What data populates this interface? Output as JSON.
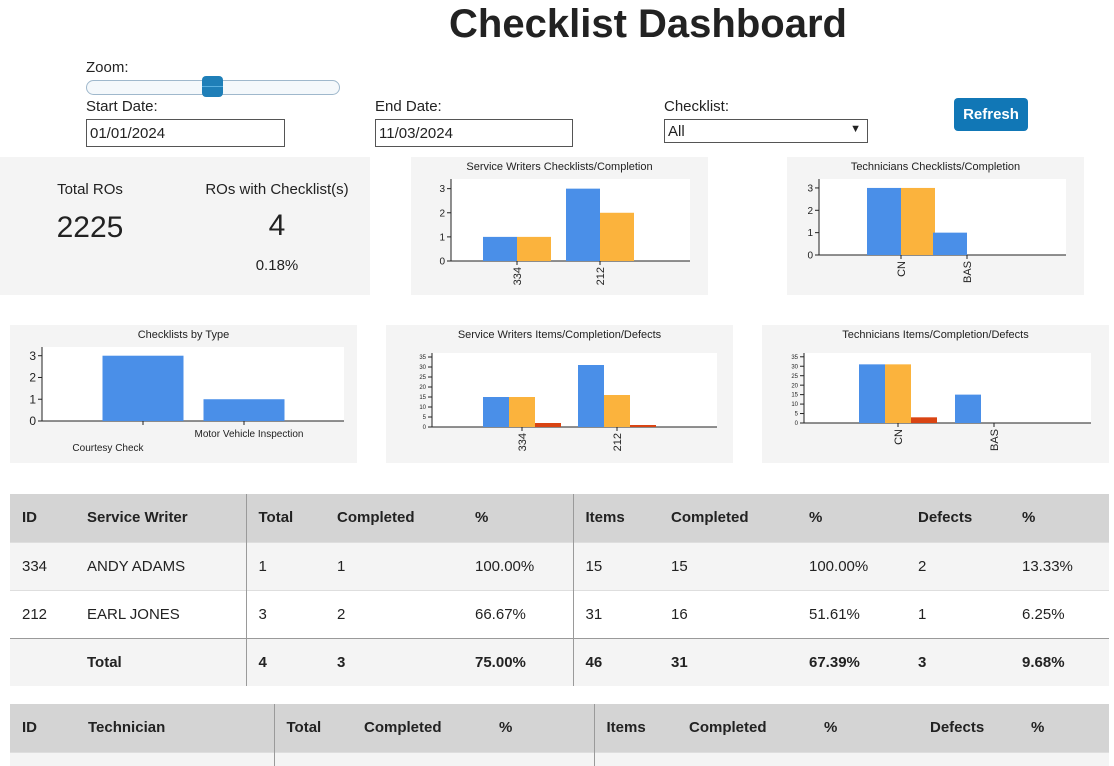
{
  "title": "Checklist Dashboard",
  "controls": {
    "zoom_label": "Zoom:",
    "zoom_level": 0.5,
    "start_label": "Start Date:",
    "start_value": "01/01/2024",
    "end_label": "End Date:",
    "end_value": "11/03/2024",
    "checklist_label": "Checklist:",
    "checklist_value": "All",
    "refresh_label": "Refresh",
    "dropdown_icon": "chevron-down-icon"
  },
  "stats": {
    "total_ros_label": "Total ROs",
    "total_ros_value": "2225",
    "ros_checklist_label": "ROs with Checklist(s)",
    "ros_checklist_value": "4",
    "ros_checklist_pct": "0.18%"
  },
  "colors": {
    "blue": "#4a8fe8",
    "orange": "#fbb33d",
    "red": "#d94413",
    "panel": "#f4f4f4"
  },
  "chart_data": [
    {
      "id": "sw-checklists",
      "type": "bar",
      "title": "Service Writers Checklists/Completion",
      "categories": [
        "334",
        "212"
      ],
      "series": [
        {
          "values": [
            1,
            3
          ]
        },
        {
          "values": [
            1,
            2
          ]
        }
      ],
      "ylim": [
        0,
        3.4
      ],
      "yticks": [
        0,
        1,
        2,
        3
      ]
    },
    {
      "id": "tech-checklists",
      "type": "bar",
      "title": "Technicians Checklists/Completion",
      "categories": [
        "CN",
        "BAS"
      ],
      "series": [
        {
          "values": [
            3,
            1
          ]
        },
        {
          "values": [
            3,
            0
          ]
        }
      ],
      "ylim": [
        0,
        3.4
      ],
      "yticks": [
        0,
        1,
        2,
        3
      ]
    },
    {
      "id": "by-type",
      "type": "bar",
      "title": "Checklists by Type",
      "categories": [
        "Courtesy Check",
        "Motor Vehicle Inspection"
      ],
      "series": [
        {
          "values": [
            3,
            1
          ]
        }
      ],
      "ylim": [
        0,
        3.4
      ],
      "yticks": [
        0,
        1,
        2,
        3
      ]
    },
    {
      "id": "sw-items",
      "type": "bar",
      "title": "Service Writers Items/Completion/Defects",
      "categories": [
        "334",
        "212"
      ],
      "series": [
        {
          "values": [
            15,
            31
          ]
        },
        {
          "values": [
            15,
            16
          ]
        },
        {
          "values": [
            2,
            1
          ]
        }
      ],
      "ylim": [
        0,
        37
      ],
      "yticks": [
        0,
        5,
        10,
        15,
        20,
        25,
        30,
        35
      ]
    },
    {
      "id": "tech-items",
      "type": "bar",
      "title": "Technicians Items/Completion/Defects",
      "categories": [
        "CN",
        "BAS"
      ],
      "series": [
        {
          "values": [
            31,
            15
          ]
        },
        {
          "values": [
            31,
            0
          ]
        },
        {
          "values": [
            3,
            0
          ]
        }
      ],
      "ylim": [
        0,
        37
      ],
      "yticks": [
        0,
        5,
        10,
        15,
        20,
        25,
        30,
        35
      ]
    }
  ],
  "sw_table": {
    "headers": [
      "ID",
      "Service Writer",
      "Total",
      "Completed",
      "%",
      "Items",
      "Completed",
      "%",
      "Defects",
      "%"
    ],
    "rows": [
      [
        "334",
        "ANDY ADAMS",
        "1",
        "1",
        "100.00%",
        "15",
        "15",
        "100.00%",
        "2",
        "13.33%"
      ],
      [
        "212",
        "EARL JONES",
        "3",
        "2",
        "66.67%",
        "31",
        "16",
        "51.61%",
        "1",
        "6.25%"
      ]
    ],
    "total": [
      "",
      "Total",
      "4",
      "3",
      "75.00%",
      "46",
      "31",
      "67.39%",
      "3",
      "9.68%"
    ]
  },
  "tech_table": {
    "headers": [
      "ID",
      "Technician",
      "Total",
      "Completed",
      "%",
      "Items",
      "Completed",
      "%",
      "Defects",
      "%"
    ]
  }
}
